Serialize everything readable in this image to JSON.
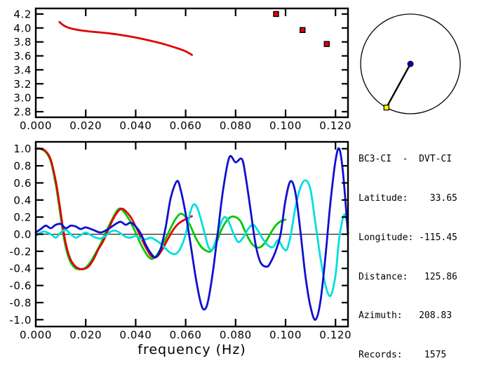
{
  "station_info": {
    "title": "BC3-CI  -  DVT-CI",
    "lines": [
      "Latitude:    33.65",
      "Longitude: -115.45",
      "Distance:   125.86",
      "Azimuth:   208.83",
      "Records:    1575"
    ]
  },
  "azimuth_diagram": {
    "azimuth_deg": 208.83,
    "station_marker_color": "#0000bb",
    "event_marker_color": "#ffff00"
  },
  "chart_data": [
    {
      "name": "group-velocity-chart",
      "type": "line",
      "title": "",
      "xlabel": "",
      "ylabel": "",
      "xlim": [
        0,
        0.125
      ],
      "ylim": [
        2.72,
        4.28
      ],
      "grid": false,
      "xticks": {
        "values": [
          0,
          0.02,
          0.04,
          0.06,
          0.08,
          0.1,
          0.12
        ],
        "labels": [
          "0.000",
          "0.020",
          "0.040",
          "0.060",
          "0.080",
          "0.100",
          "0.120"
        ]
      },
      "yticks": {
        "values": [
          2.8,
          3.0,
          3.2,
          3.4,
          3.6,
          3.8,
          4.0,
          4.2
        ],
        "labels": [
          "2.8",
          "3.0",
          "3.2",
          "3.4",
          "3.6",
          "3.8",
          "4.0",
          "4.2"
        ]
      },
      "zero_line": false,
      "series": [
        {
          "name": "dispersion-curve",
          "color": "#e00000",
          "points": [
            [
              0.0095,
              4.085
            ],
            [
              0.011,
              4.04
            ],
            [
              0.013,
              4.005
            ],
            [
              0.015,
              3.985
            ],
            [
              0.018,
              3.965
            ],
            [
              0.021,
              3.952
            ],
            [
              0.024,
              3.942
            ],
            [
              0.027,
              3.932
            ],
            [
              0.03,
              3.92
            ],
            [
              0.033,
              3.905
            ],
            [
              0.036,
              3.888
            ],
            [
              0.039,
              3.87
            ],
            [
              0.042,
              3.848
            ],
            [
              0.045,
              3.825
            ],
            [
              0.048,
              3.8
            ],
            [
              0.051,
              3.772
            ],
            [
              0.054,
              3.74
            ],
            [
              0.057,
              3.705
            ],
            [
              0.06,
              3.665
            ],
            [
              0.0625,
              3.615
            ]
          ]
        }
      ],
      "markers": {
        "name": "picked-velocities",
        "color": "#e00000",
        "shape": "square",
        "points": [
          [
            0.0962,
            4.2
          ],
          [
            0.1068,
            3.97
          ],
          [
            0.1165,
            3.77
          ]
        ]
      }
    },
    {
      "name": "correlation-chart",
      "type": "line",
      "title": "",
      "xlabel": "frequency (Hz)",
      "ylabel": "",
      "xlim": [
        0,
        0.125
      ],
      "ylim": [
        -1.08,
        1.08
      ],
      "grid": false,
      "xticks": {
        "values": [
          0,
          0.02,
          0.04,
          0.06,
          0.08,
          0.1,
          0.12
        ],
        "labels": [
          "0.000",
          "0.020",
          "0.040",
          "0.060",
          "0.080",
          "0.100",
          "0.120"
        ]
      },
      "yticks": {
        "values": [
          1.0,
          0.8,
          0.6,
          0.4,
          0.2,
          0.0,
          -0.2,
          -0.4,
          -0.6,
          -0.8,
          -1.0
        ],
        "labels": [
          "1.0",
          "0.8",
          "0.6",
          "0.4",
          "0.2",
          "0.0",
          "-0.2",
          "-0.4",
          "-0.6",
          "-0.8",
          "-1.0"
        ]
      },
      "zero_line": true,
      "series": [
        {
          "name": "green-correlation",
          "color": "#00c800",
          "points": [
            [
              0.0,
              1.0
            ],
            [
              0.002,
              0.995
            ],
            [
              0.004,
              0.96
            ],
            [
              0.006,
              0.85
            ],
            [
              0.008,
              0.58
            ],
            [
              0.0095,
              0.3
            ],
            [
              0.011,
              0.0
            ],
            [
              0.0125,
              -0.21
            ],
            [
              0.014,
              -0.33
            ],
            [
              0.016,
              -0.4
            ],
            [
              0.018,
              -0.41
            ],
            [
              0.02,
              -0.39
            ],
            [
              0.022,
              -0.32
            ],
            [
              0.024,
              -0.22
            ],
            [
              0.026,
              -0.11
            ],
            [
              0.028,
              0.02
            ],
            [
              0.03,
              0.14
            ],
            [
              0.032,
              0.25
            ],
            [
              0.0335,
              0.3
            ],
            [
              0.035,
              0.27
            ],
            [
              0.037,
              0.19
            ],
            [
              0.039,
              0.08
            ],
            [
              0.041,
              -0.05
            ],
            [
              0.043,
              -0.17
            ],
            [
              0.045,
              -0.26
            ],
            [
              0.0465,
              -0.29
            ],
            [
              0.048,
              -0.26
            ],
            [
              0.05,
              -0.17
            ],
            [
              0.052,
              -0.05
            ],
            [
              0.054,
              0.07
            ],
            [
              0.056,
              0.18
            ],
            [
              0.058,
              0.24
            ],
            [
              0.06,
              0.2
            ],
            [
              0.062,
              0.09
            ],
            [
              0.064,
              -0.04
            ],
            [
              0.066,
              -0.14
            ],
            [
              0.068,
              -0.19
            ],
            [
              0.07,
              -0.2
            ],
            [
              0.072,
              -0.12
            ],
            [
              0.074,
              0.03
            ],
            [
              0.076,
              0.14
            ],
            [
              0.078,
              0.2
            ],
            [
              0.08,
              0.2
            ],
            [
              0.082,
              0.15
            ],
            [
              0.084,
              0.02
            ],
            [
              0.086,
              -0.09
            ],
            [
              0.088,
              -0.15
            ],
            [
              0.09,
              -0.15
            ],
            [
              0.092,
              -0.09
            ],
            [
              0.094,
              0.01
            ],
            [
              0.096,
              0.1
            ],
            [
              0.098,
              0.15
            ],
            [
              0.1,
              0.17
            ]
          ]
        },
        {
          "name": "red-correlation",
          "color": "#e00000",
          "points": [
            [
              0.0,
              1.0
            ],
            [
              0.002,
              1.0
            ],
            [
              0.004,
              0.97
            ],
            [
              0.006,
              0.87
            ],
            [
              0.008,
              0.62
            ],
            [
              0.0095,
              0.35
            ],
            [
              0.011,
              0.05
            ],
            [
              0.0125,
              -0.17
            ],
            [
              0.014,
              -0.3
            ],
            [
              0.016,
              -0.38
            ],
            [
              0.0185,
              -0.41
            ],
            [
              0.021,
              -0.38
            ],
            [
              0.023,
              -0.3
            ],
            [
              0.025,
              -0.18
            ],
            [
              0.027,
              -0.08
            ],
            [
              0.029,
              0.05
            ],
            [
              0.031,
              0.18
            ],
            [
              0.033,
              0.27
            ],
            [
              0.0345,
              0.3
            ],
            [
              0.036,
              0.27
            ],
            [
              0.038,
              0.2
            ],
            [
              0.04,
              0.09
            ],
            [
              0.042,
              -0.03
            ],
            [
              0.044,
              -0.15
            ],
            [
              0.046,
              -0.25
            ],
            [
              0.0475,
              -0.27
            ],
            [
              0.049,
              -0.25
            ],
            [
              0.051,
              -0.16
            ],
            [
              0.053,
              -0.05
            ],
            [
              0.055,
              0.05
            ],
            [
              0.057,
              0.12
            ],
            [
              0.059,
              0.16
            ],
            [
              0.061,
              0.19
            ],
            [
              0.0625,
              0.21
            ]
          ]
        },
        {
          "name": "cyan-correlation",
          "color": "#00dede",
          "points": [
            [
              0.0,
              -0.02
            ],
            [
              0.003,
              0.03
            ],
            [
              0.006,
              0.0
            ],
            [
              0.008,
              -0.04
            ],
            [
              0.01,
              0.02
            ],
            [
              0.012,
              0.05
            ],
            [
              0.014,
              0.0
            ],
            [
              0.016,
              -0.04
            ],
            [
              0.018,
              -0.01
            ],
            [
              0.02,
              0.02
            ],
            [
              0.022,
              -0.01
            ],
            [
              0.024,
              -0.04
            ],
            [
              0.026,
              -0.05
            ],
            [
              0.028,
              -0.02
            ],
            [
              0.03,
              0.03
            ],
            [
              0.032,
              0.04
            ],
            [
              0.034,
              0.01
            ],
            [
              0.036,
              -0.03
            ],
            [
              0.038,
              -0.04
            ],
            [
              0.04,
              -0.02
            ],
            [
              0.042,
              -0.05
            ],
            [
              0.044,
              -0.06
            ],
            [
              0.046,
              -0.04
            ],
            [
              0.048,
              -0.07
            ],
            [
              0.05,
              -0.11
            ],
            [
              0.052,
              -0.17
            ],
            [
              0.054,
              -0.22
            ],
            [
              0.056,
              -0.23
            ],
            [
              0.058,
              -0.16
            ],
            [
              0.06,
              0.0
            ],
            [
              0.062,
              0.27
            ],
            [
              0.0635,
              0.35
            ],
            [
              0.065,
              0.28
            ],
            [
              0.067,
              0.08
            ],
            [
              0.069,
              -0.14
            ],
            [
              0.0705,
              -0.18
            ],
            [
              0.072,
              -0.08
            ],
            [
              0.074,
              0.12
            ],
            [
              0.0755,
              0.2
            ],
            [
              0.077,
              0.16
            ],
            [
              0.079,
              0.02
            ],
            [
              0.081,
              -0.09
            ],
            [
              0.083,
              -0.04
            ],
            [
              0.085,
              0.06
            ],
            [
              0.087,
              0.11
            ],
            [
              0.089,
              0.04
            ],
            [
              0.091,
              -0.06
            ],
            [
              0.093,
              -0.13
            ],
            [
              0.095,
              -0.15
            ],
            [
              0.097,
              -0.07
            ],
            [
              0.099,
              -0.16
            ],
            [
              0.1005,
              -0.18
            ],
            [
              0.102,
              -0.02
            ],
            [
              0.104,
              0.32
            ],
            [
              0.106,
              0.55
            ],
            [
              0.108,
              0.63
            ],
            [
              0.11,
              0.52
            ],
            [
              0.112,
              0.12
            ],
            [
              0.114,
              -0.28
            ],
            [
              0.116,
              -0.6
            ],
            [
              0.118,
              -0.72
            ],
            [
              0.12,
              -0.48
            ],
            [
              0.1215,
              -0.05
            ],
            [
              0.1235,
              0.23
            ],
            [
              0.125,
              0.09
            ]
          ]
        },
        {
          "name": "blue-correlation",
          "color": "#1010d0",
          "points": [
            [
              0.0,
              0.02
            ],
            [
              0.002,
              0.06
            ],
            [
              0.004,
              0.1
            ],
            [
              0.006,
              0.07
            ],
            [
              0.008,
              0.11
            ],
            [
              0.01,
              0.12
            ],
            [
              0.012,
              0.07
            ],
            [
              0.014,
              0.1
            ],
            [
              0.016,
              0.09
            ],
            [
              0.018,
              0.06
            ],
            [
              0.02,
              0.08
            ],
            [
              0.023,
              0.05
            ],
            [
              0.026,
              0.02
            ],
            [
              0.029,
              0.06
            ],
            [
              0.032,
              0.12
            ],
            [
              0.034,
              0.145
            ],
            [
              0.036,
              0.11
            ],
            [
              0.038,
              0.135
            ],
            [
              0.04,
              0.09
            ],
            [
              0.042,
              0.01
            ],
            [
              0.044,
              -0.12
            ],
            [
              0.046,
              -0.22
            ],
            [
              0.048,
              -0.27
            ],
            [
              0.05,
              -0.17
            ],
            [
              0.052,
              0.08
            ],
            [
              0.054,
              0.42
            ],
            [
              0.0565,
              0.62
            ],
            [
              0.058,
              0.52
            ],
            [
              0.06,
              0.24
            ],
            [
              0.062,
              -0.12
            ],
            [
              0.064,
              -0.5
            ],
            [
              0.066,
              -0.8
            ],
            [
              0.0675,
              -0.88
            ],
            [
              0.069,
              -0.78
            ],
            [
              0.071,
              -0.42
            ],
            [
              0.073,
              0.05
            ],
            [
              0.075,
              0.52
            ],
            [
              0.0775,
              0.9
            ],
            [
              0.08,
              0.84
            ],
            [
              0.0825,
              0.88
            ],
            [
              0.084,
              0.68
            ],
            [
              0.086,
              0.28
            ],
            [
              0.088,
              -0.12
            ],
            [
              0.09,
              -0.33
            ],
            [
              0.0925,
              -0.38
            ],
            [
              0.094,
              -0.33
            ],
            [
              0.096,
              -0.2
            ],
            [
              0.098,
              0.0
            ],
            [
              0.1,
              0.4
            ],
            [
              0.102,
              0.62
            ],
            [
              0.104,
              0.48
            ],
            [
              0.106,
              0.02
            ],
            [
              0.108,
              -0.5
            ],
            [
              0.11,
              -0.85
            ],
            [
              0.112,
              -1.0
            ],
            [
              0.114,
              -0.78
            ],
            [
              0.116,
              -0.25
            ],
            [
              0.118,
              0.38
            ],
            [
              0.12,
              0.86
            ],
            [
              0.1215,
              1.0
            ],
            [
              0.123,
              0.72
            ],
            [
              0.125,
              0.0
            ]
          ]
        }
      ]
    }
  ]
}
